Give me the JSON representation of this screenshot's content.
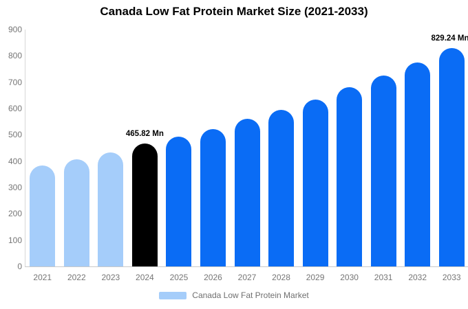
{
  "chart_data": {
    "type": "bar",
    "title": "Canada Low Fat Protein Market Size (2021-2033)",
    "xlabel": "",
    "ylabel": "",
    "categories": [
      "2021",
      "2022",
      "2023",
      "2024",
      "2025",
      "2026",
      "2027",
      "2028",
      "2029",
      "2030",
      "2031",
      "2032",
      "2033"
    ],
    "values": [
      383,
      407,
      434,
      465.82,
      492,
      523,
      560,
      596,
      634,
      680,
      724,
      776,
      829.24
    ],
    "unit": "Mn",
    "ylim": [
      0,
      900
    ],
    "yticks": [
      0,
      100,
      200,
      300,
      400,
      500,
      600,
      700,
      800,
      900
    ],
    "grid": false,
    "legend_position": "bottom",
    "bar_colors": [
      "#A5CDFA",
      "#A5CDFA",
      "#A5CDFA",
      "#000000",
      "#0A6CF5",
      "#0A6CF5",
      "#0A6CF5",
      "#0A6CF5",
      "#0A6CF5",
      "#0A6CF5",
      "#0A6CF5",
      "#0A6CF5",
      "#0A6CF5"
    ],
    "annotations": [
      {
        "category": "2024",
        "text": "465.82 Mn"
      },
      {
        "category": "2033",
        "text": "829.24 Mn"
      }
    ]
  },
  "legend": {
    "label": "Canada Low Fat Protein Market",
    "swatch_color": "#A5CDFA"
  },
  "style": {
    "axis_line_color": "#d0d0d0",
    "tick_label_color": "#757575",
    "highlight_color": "#000000",
    "forecast_color": "#0A6CF5",
    "historical_color": "#A5CDFA"
  }
}
